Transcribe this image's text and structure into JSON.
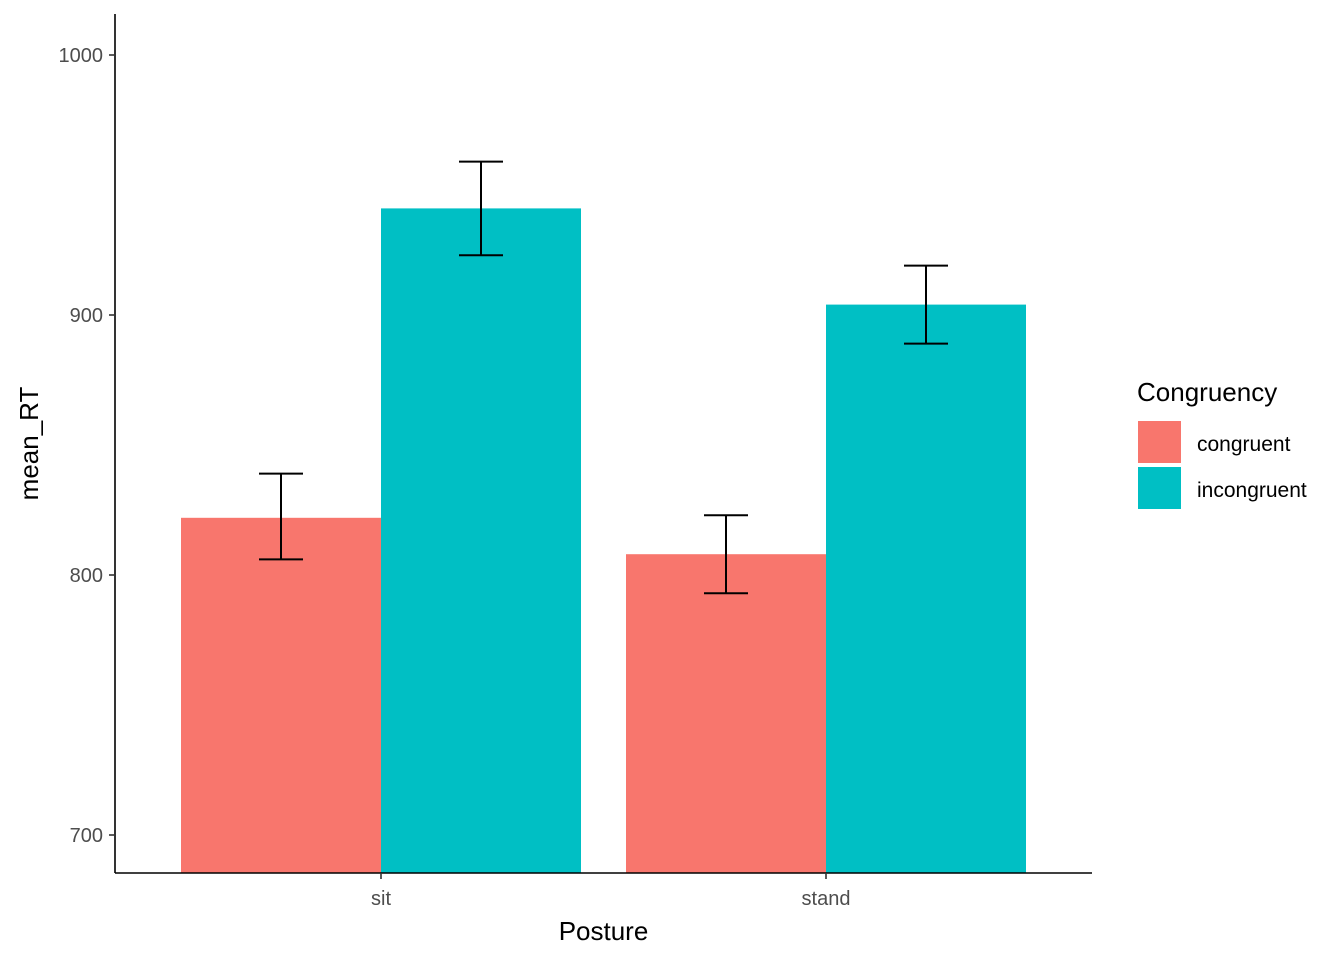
{
  "chart_data": {
    "type": "bar",
    "categories": [
      "sit",
      "stand"
    ],
    "series": [
      {
        "name": "congruent",
        "color": "#F8766D",
        "values": [
          822,
          808
        ],
        "error_low": [
          806,
          793
        ],
        "error_high": [
          839,
          823
        ]
      },
      {
        "name": "incongruent",
        "color": "#00BFC4",
        "values": [
          941,
          904
        ],
        "error_low": [
          923,
          889
        ],
        "error_high": [
          959,
          919
        ]
      }
    ],
    "xlabel": "Posture",
    "ylabel": "mean_RT",
    "ylim": [
      685.5,
      1015
    ],
    "yticks": [
      700,
      800,
      900,
      1000
    ],
    "legend": {
      "title": "Congruency",
      "position": "right"
    },
    "grid": false
  }
}
